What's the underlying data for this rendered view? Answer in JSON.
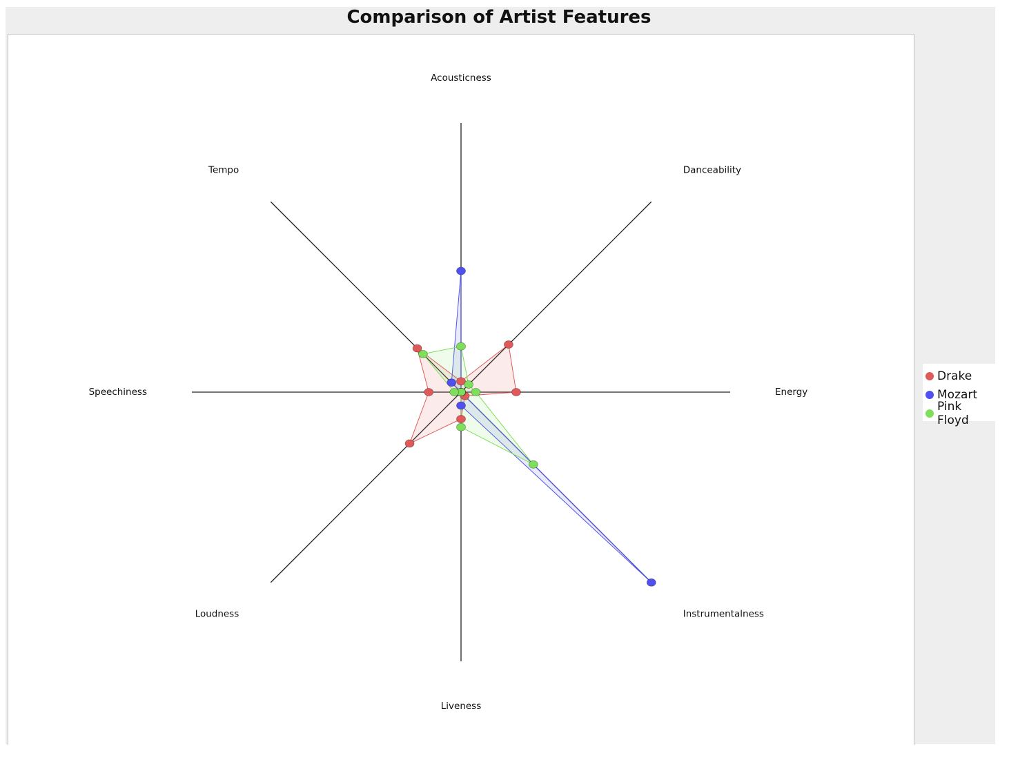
{
  "chart_data": {
    "type": "radar",
    "title": "Comparison of Artist Features",
    "axes": [
      "Acousticness",
      "Danceability",
      "Energy",
      "Instrumentalness",
      "Liveness",
      "Loudness",
      "Speechiness",
      "Tempo"
    ],
    "range": [
      0,
      1
    ],
    "series": [
      {
        "name": "Drake",
        "color": "#e05a5a",
        "values": [
          0.04,
          0.25,
          0.205,
          0.02,
          0.1,
          0.27,
          0.12,
          0.23
        ]
      },
      {
        "name": "Mozart",
        "color": "#5050f0",
        "values": [
          0.45,
          0.0,
          0.0,
          1.0,
          0.05,
          0.0,
          0.0,
          0.05
        ]
      },
      {
        "name": "Pink Floyd",
        "color": "#7ee05a",
        "values": [
          0.17,
          0.04,
          0.055,
          0.38,
          0.13,
          0.0,
          0.025,
          0.2
        ]
      }
    ],
    "legend_position": "right",
    "grid": false
  }
}
